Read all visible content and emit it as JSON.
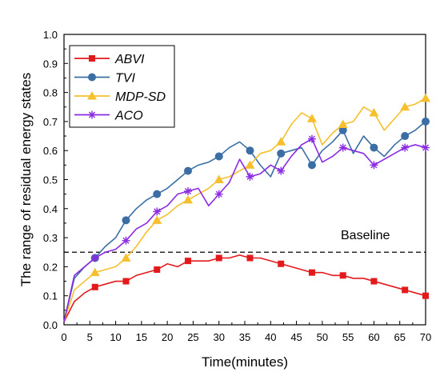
{
  "chart_data": {
    "type": "line",
    "title": "",
    "xlabel": "Time(minutes)",
    "ylabel": "The range of residual energy states",
    "xlim": [
      0,
      70
    ],
    "ylim": [
      0,
      1.0
    ],
    "xticks": [
      "0",
      "5",
      "10",
      "15",
      "20",
      "25",
      "30",
      "35",
      "40",
      "45",
      "50",
      "55",
      "60",
      "65",
      "70"
    ],
    "yticks": [
      "0.0",
      "0.1",
      "0.2",
      "0.3",
      "0.4",
      "0.5",
      "0.6",
      "0.7",
      "0.8",
      "0.9",
      "1.0"
    ],
    "legend_position": "top-left",
    "baseline": {
      "label": "Baseline",
      "y": 0.25
    },
    "series": [
      {
        "name": "ABVI",
        "color": "#e31a1c",
        "marker": "square",
        "x": [
          0,
          2,
          4,
          6,
          8,
          10,
          12,
          14,
          16,
          18,
          20,
          22,
          24,
          26,
          28,
          30,
          32,
          34,
          36,
          38,
          40,
          42,
          44,
          46,
          48,
          50,
          52,
          54,
          56,
          58,
          60,
          62,
          64,
          66,
          68,
          70
        ],
        "y": [
          0.01,
          0.08,
          0.11,
          0.13,
          0.14,
          0.15,
          0.15,
          0.17,
          0.18,
          0.19,
          0.21,
          0.2,
          0.22,
          0.22,
          0.22,
          0.23,
          0.23,
          0.24,
          0.23,
          0.23,
          0.22,
          0.21,
          0.2,
          0.19,
          0.18,
          0.18,
          0.17,
          0.17,
          0.16,
          0.16,
          0.15,
          0.14,
          0.13,
          0.12,
          0.11,
          0.1
        ],
        "marker_x": [
          6,
          12,
          18,
          24,
          30,
          36,
          42,
          48,
          54,
          60,
          66,
          70
        ]
      },
      {
        "name": "TVI",
        "color": "#3a6ea5",
        "marker": "circle",
        "x": [
          0,
          2,
          4,
          6,
          8,
          10,
          12,
          14,
          16,
          18,
          20,
          22,
          24,
          26,
          28,
          30,
          32,
          34,
          36,
          38,
          40,
          42,
          44,
          46,
          48,
          50,
          52,
          54,
          56,
          58,
          60,
          62,
          64,
          66,
          68,
          70
        ],
        "y": [
          0.01,
          0.16,
          0.2,
          0.23,
          0.27,
          0.3,
          0.36,
          0.4,
          0.43,
          0.45,
          0.47,
          0.5,
          0.53,
          0.55,
          0.56,
          0.58,
          0.61,
          0.63,
          0.6,
          0.55,
          0.51,
          0.59,
          0.6,
          0.61,
          0.55,
          0.6,
          0.63,
          0.67,
          0.59,
          0.65,
          0.61,
          0.58,
          0.62,
          0.65,
          0.67,
          0.7
        ],
        "marker_x": [
          6,
          12,
          18,
          24,
          30,
          36,
          42,
          48,
          54,
          60,
          66,
          70
        ]
      },
      {
        "name": "MDP-SD",
        "color": "#f5c02c",
        "marker": "triangle",
        "x": [
          0,
          2,
          4,
          6,
          8,
          10,
          12,
          14,
          16,
          18,
          20,
          22,
          24,
          26,
          28,
          30,
          32,
          34,
          36,
          38,
          40,
          42,
          44,
          46,
          48,
          50,
          52,
          54,
          56,
          58,
          60,
          62,
          64,
          66,
          68,
          70
        ],
        "y": [
          0.01,
          0.12,
          0.15,
          0.18,
          0.19,
          0.2,
          0.23,
          0.27,
          0.32,
          0.36,
          0.38,
          0.41,
          0.43,
          0.45,
          0.47,
          0.5,
          0.51,
          0.53,
          0.55,
          0.59,
          0.6,
          0.63,
          0.69,
          0.73,
          0.71,
          0.62,
          0.66,
          0.69,
          0.7,
          0.75,
          0.73,
          0.67,
          0.71,
          0.75,
          0.76,
          0.78
        ],
        "marker_x": [
          6,
          12,
          18,
          24,
          30,
          36,
          42,
          48,
          54,
          60,
          66,
          70
        ]
      },
      {
        "name": "ACO",
        "color": "#8a2be2",
        "marker": "asterisk",
        "x": [
          0,
          2,
          4,
          6,
          8,
          10,
          12,
          14,
          16,
          18,
          20,
          22,
          24,
          26,
          28,
          30,
          32,
          34,
          36,
          38,
          40,
          42,
          44,
          46,
          48,
          50,
          52,
          54,
          56,
          58,
          60,
          62,
          64,
          66,
          68,
          70
        ],
        "y": [
          0.01,
          0.17,
          0.2,
          0.23,
          0.25,
          0.26,
          0.29,
          0.33,
          0.35,
          0.39,
          0.41,
          0.45,
          0.46,
          0.47,
          0.41,
          0.45,
          0.49,
          0.57,
          0.51,
          0.52,
          0.55,
          0.53,
          0.58,
          0.62,
          0.64,
          0.56,
          0.58,
          0.61,
          0.6,
          0.59,
          0.55,
          0.57,
          0.59,
          0.61,
          0.62,
          0.61
        ],
        "marker_x": [
          6,
          12,
          18,
          24,
          30,
          36,
          42,
          48,
          54,
          60,
          66,
          70
        ]
      }
    ]
  }
}
